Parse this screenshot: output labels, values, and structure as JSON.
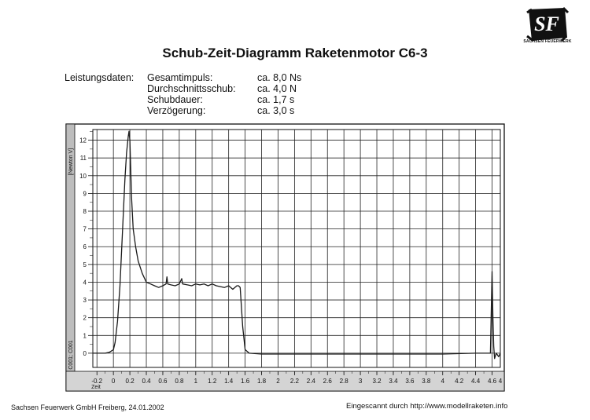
{
  "header": {
    "logo_letters": "SF",
    "logo_caption": "SACHSEN FEUERWERK",
    "title": "Schub-Zeit-Diagramm Raketenmotor C6-3"
  },
  "specs": {
    "heading": "Leistungsdaten:",
    "rows": [
      {
        "label": "Gesamtimpuls:",
        "value": "ca. 8,0 Ns"
      },
      {
        "label": "Durchschnittsschub:",
        "value": "ca. 4,0 N"
      },
      {
        "label": "Schubdauer:",
        "value": "ca. 1,7 s"
      },
      {
        "label": "Verzögerung:",
        "value": "ca. 3,0 s"
      }
    ]
  },
  "footer": {
    "left": "Sachsen Feuerwerk GmbH Freiberg, 24.01.2002",
    "right": "Eingescannt durch http://www.modellraketen.info"
  },
  "colors": {
    "line": "#1a1a1a",
    "grid": "#222222",
    "background": "#ffffff"
  },
  "chart_data": {
    "type": "line",
    "title": "Schub-Zeit-Diagramm Raketenmotor C6-3",
    "xlabel": "Zeit",
    "ylabel": "[Newton V]",
    "y_corner_label": "C001; C001",
    "xlim": [
      -0.25,
      4.7
    ],
    "ylim": [
      -0.8,
      12.6
    ],
    "grid": true,
    "x_ticks": [
      -0.2,
      0,
      0.2,
      0.4,
      0.6,
      0.8,
      1,
      1.2,
      1.4,
      1.6,
      1.8,
      2,
      2.2,
      2.4,
      2.6,
      2.8,
      3,
      3.2,
      3.4,
      3.6,
      3.8,
      4,
      4.2,
      4.4,
      4.6
    ],
    "x_tick_labels": [
      "-0.2",
      "0",
      "0.2",
      "0.4",
      "0.6",
      "0.8",
      "1",
      "1.2",
      "1.4",
      "1.6",
      "1.8",
      "2",
      "2.2",
      "2.4",
      "2.6",
      "2.8",
      "3",
      "3.2",
      "3.4",
      "3.6",
      "3.8",
      "4",
      "4.2",
      "4.4",
      "4.6"
    ],
    "x_end_label": "4",
    "y_ticks": [
      0,
      1,
      2,
      3,
      4,
      5,
      6,
      7,
      8,
      9,
      10,
      11,
      12
    ],
    "y_tick_labels": [
      "0",
      "1",
      "2",
      "3",
      "4",
      "5",
      "6",
      "7",
      "8",
      "9",
      "10",
      "11",
      "12"
    ],
    "series": [
      {
        "x": [
          -0.25,
          -0.1,
          -0.05,
          0,
          0.02,
          0.05,
          0.08,
          0.1,
          0.12,
          0.14,
          0.16,
          0.18,
          0.19,
          0.2,
          0.21,
          0.22,
          0.24,
          0.27,
          0.3,
          0.35,
          0.4,
          0.45,
          0.5,
          0.55,
          0.6,
          0.64,
          0.65,
          0.66,
          0.7,
          0.75,
          0.8,
          0.82,
          0.83,
          0.84,
          0.9,
          0.95,
          1.0,
          1.05,
          1.1,
          1.15,
          1.2,
          1.25,
          1.3,
          1.35,
          1.4,
          1.45,
          1.5,
          1.52,
          1.54,
          1.57,
          1.6,
          1.65,
          1.8,
          2.0,
          2.5,
          3.0,
          3.5,
          4.0,
          4.4,
          4.58,
          4.6,
          4.61,
          4.62,
          4.63,
          4.65,
          4.68,
          4.7
        ],
        "y": [
          0,
          0,
          0.05,
          0.2,
          0.6,
          1.8,
          3.8,
          5.8,
          7.8,
          9.8,
          11.3,
          12.2,
          12.5,
          12.0,
          10.5,
          8.8,
          7.0,
          6.0,
          5.2,
          4.5,
          4.0,
          3.9,
          3.8,
          3.7,
          3.8,
          3.9,
          4.3,
          3.9,
          3.85,
          3.8,
          3.9,
          4.1,
          4.2,
          3.9,
          3.85,
          3.8,
          3.9,
          3.85,
          3.9,
          3.8,
          3.9,
          3.8,
          3.75,
          3.7,
          3.8,
          3.6,
          3.8,
          3.8,
          3.7,
          1.5,
          0.2,
          0.0,
          -0.05,
          -0.05,
          -0.05,
          -0.05,
          -0.05,
          -0.05,
          0.0,
          0.0,
          4.6,
          2.0,
          0.4,
          -0.3,
          0.0,
          -0.2,
          0.0
        ]
      }
    ]
  }
}
